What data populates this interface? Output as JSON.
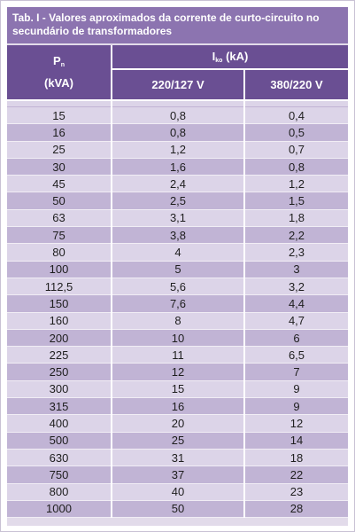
{
  "title": {
    "line1": "Tab. I - Valores aproximados da corrente de curto-circuito no",
    "line2": "secundário de transformadores"
  },
  "header": {
    "pn_main": "P",
    "pn_sub": "n",
    "pn_unit": "(kVA)",
    "ik_main": "I",
    "ik_sub": "ko",
    "ik_unit": " (kA)",
    "col_220": "220/127 V",
    "col_380": "380/220 V"
  },
  "rows": [
    [
      "15",
      "0,8",
      "0,4"
    ],
    [
      "16",
      "0,8",
      "0,5"
    ],
    [
      "25",
      "1,2",
      "0,7"
    ],
    [
      "30",
      "1,6",
      "0,8"
    ],
    [
      "45",
      "2,4",
      "1,2"
    ],
    [
      "50",
      "2,5",
      "1,5"
    ],
    [
      "63",
      "3,1",
      "1,8"
    ],
    [
      "75",
      "3,8",
      "2,2"
    ],
    [
      "80",
      "4",
      "2,3"
    ],
    [
      "100",
      "5",
      "3"
    ],
    [
      "112,5",
      "5,6",
      "3,2"
    ],
    [
      "150",
      "7,6",
      "4,4"
    ],
    [
      "160",
      "8",
      "4,7"
    ],
    [
      "200",
      "10",
      "6"
    ],
    [
      "225",
      "11",
      "6,5"
    ],
    [
      "250",
      "12",
      "7"
    ],
    [
      "300",
      "15",
      "9"
    ],
    [
      "315",
      "16",
      "9"
    ],
    [
      "400",
      "20",
      "12"
    ],
    [
      "500",
      "25",
      "14"
    ],
    [
      "630",
      "31",
      "18"
    ],
    [
      "750",
      "37",
      "22"
    ],
    [
      "800",
      "40",
      "23"
    ],
    [
      "1000",
      "50",
      "28"
    ]
  ],
  "colors": {
    "title_bg": "#8c74b0",
    "header_bg": "#6a4f93",
    "row_dark": "#c1b4d5",
    "row_light": "#dcd4e8"
  }
}
